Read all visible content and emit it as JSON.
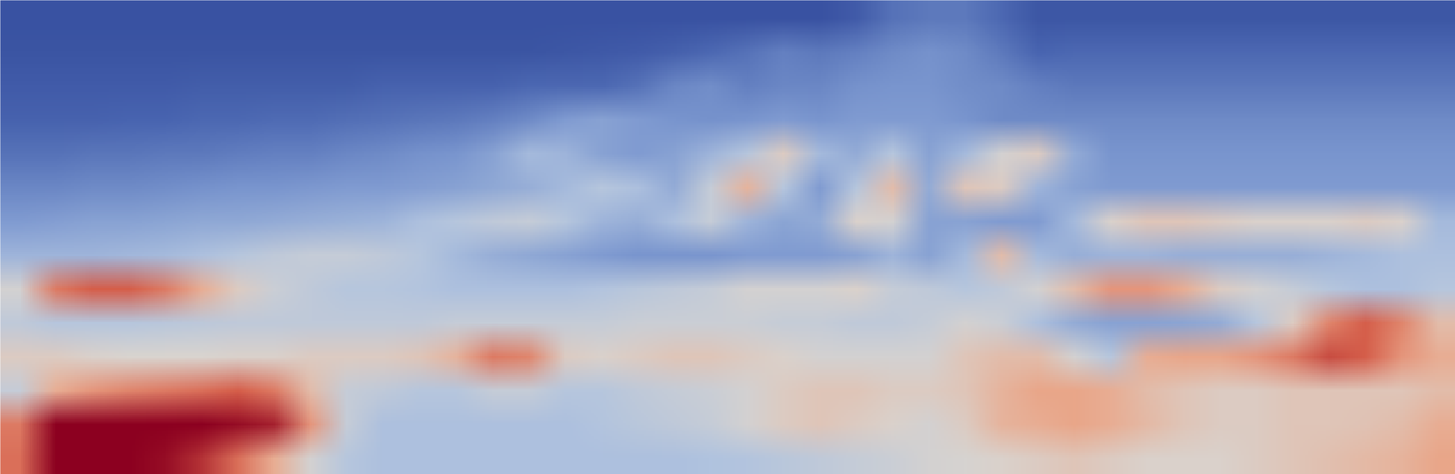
{
  "chart_data": {
    "type": "heatmap",
    "tick_labels": false,
    "zlim": [
      0,
      1
    ],
    "colors": [
      "#2e4597",
      "#4965b0",
      "#7b97cf",
      "#b0c3df",
      "#d9d4cf",
      "#eaa98c",
      "#d45a47",
      "#8c0020"
    ],
    "cells": [
      [
        0.06,
        0.06,
        0.06,
        0.06,
        0.06,
        0.06,
        0.06,
        0.06,
        0.06,
        0.06,
        0.06,
        0.06,
        0.06,
        0.06,
        0.06,
        0.06,
        0.06,
        0.06,
        0.06,
        0.06,
        0.06,
        0.06,
        0.06,
        0.1,
        0.18,
        0.2,
        0.2,
        0.15,
        0.08,
        0.08,
        0.08,
        0.08,
        0.08,
        0.08,
        0.08,
        0.08,
        0.08,
        0.08,
        0.08,
        0.08
      ],
      [
        0.07,
        0.07,
        0.07,
        0.07,
        0.07,
        0.07,
        0.07,
        0.07,
        0.07,
        0.07,
        0.07,
        0.07,
        0.07,
        0.07,
        0.07,
        0.08,
        0.09,
        0.1,
        0.12,
        0.15,
        0.18,
        0.22,
        0.2,
        0.22,
        0.25,
        0.27,
        0.25,
        0.2,
        0.14,
        0.15,
        0.15,
        0.15,
        0.15,
        0.15,
        0.15,
        0.15,
        0.15,
        0.15,
        0.15,
        0.15
      ],
      [
        0.1,
        0.1,
        0.1,
        0.1,
        0.1,
        0.11,
        0.11,
        0.11,
        0.11,
        0.11,
        0.13,
        0.13,
        0.13,
        0.13,
        0.15,
        0.15,
        0.15,
        0.18,
        0.24,
        0.26,
        0.22,
        0.24,
        0.24,
        0.27,
        0.28,
        0.28,
        0.26,
        0.25,
        0.22,
        0.2,
        0.2,
        0.2,
        0.2,
        0.2,
        0.2,
        0.2,
        0.2,
        0.2,
        0.2,
        0.2
      ],
      [
        0.13,
        0.13,
        0.13,
        0.14,
        0.14,
        0.15,
        0.15,
        0.16,
        0.16,
        0.17,
        0.18,
        0.19,
        0.2,
        0.22,
        0.25,
        0.3,
        0.32,
        0.3,
        0.28,
        0.27,
        0.28,
        0.3,
        0.28,
        0.3,
        0.3,
        0.3,
        0.28,
        0.25,
        0.25,
        0.25,
        0.25,
        0.25,
        0.25,
        0.25,
        0.25,
        0.25,
        0.25,
        0.25,
        0.25,
        0.25
      ],
      [
        0.18,
        0.18,
        0.19,
        0.19,
        0.2,
        0.2,
        0.21,
        0.22,
        0.22,
        0.24,
        0.25,
        0.27,
        0.28,
        0.32,
        0.4,
        0.38,
        0.32,
        0.3,
        0.32,
        0.38,
        0.45,
        0.6,
        0.4,
        0.35,
        0.45,
        0.32,
        0.4,
        0.55,
        0.6,
        0.35,
        0.28,
        0.28,
        0.28,
        0.28,
        0.28,
        0.28,
        0.28,
        0.28,
        0.28,
        0.28
      ],
      [
        0.24,
        0.24,
        0.25,
        0.25,
        0.26,
        0.27,
        0.28,
        0.28,
        0.29,
        0.3,
        0.3,
        0.31,
        0.32,
        0.34,
        0.36,
        0.4,
        0.45,
        0.42,
        0.35,
        0.5,
        0.68,
        0.45,
        0.3,
        0.45,
        0.65,
        0.35,
        0.62,
        0.6,
        0.38,
        0.32,
        0.3,
        0.3,
        0.3,
        0.3,
        0.3,
        0.3,
        0.3,
        0.3,
        0.3,
        0.3
      ],
      [
        0.3,
        0.31,
        0.32,
        0.32,
        0.33,
        0.34,
        0.34,
        0.35,
        0.36,
        0.37,
        0.38,
        0.42,
        0.45,
        0.48,
        0.5,
        0.45,
        0.38,
        0.36,
        0.42,
        0.5,
        0.38,
        0.33,
        0.35,
        0.58,
        0.55,
        0.32,
        0.32,
        0.3,
        0.3,
        0.4,
        0.58,
        0.62,
        0.62,
        0.6,
        0.58,
        0.58,
        0.58,
        0.6,
        0.58,
        0.4
      ],
      [
        0.38,
        0.38,
        0.38,
        0.39,
        0.4,
        0.42,
        0.45,
        0.48,
        0.5,
        0.5,
        0.48,
        0.45,
        0.4,
        0.36,
        0.34,
        0.32,
        0.3,
        0.28,
        0.28,
        0.28,
        0.3,
        0.3,
        0.3,
        0.32,
        0.38,
        0.32,
        0.4,
        0.65,
        0.4,
        0.36,
        0.38,
        0.38,
        0.36,
        0.36,
        0.36,
        0.36,
        0.38,
        0.4,
        0.42,
        0.42
      ],
      [
        0.55,
        0.8,
        0.85,
        0.85,
        0.8,
        0.7,
        0.6,
        0.52,
        0.48,
        0.45,
        0.45,
        0.44,
        0.42,
        0.42,
        0.42,
        0.42,
        0.44,
        0.46,
        0.48,
        0.5,
        0.55,
        0.55,
        0.55,
        0.58,
        0.5,
        0.48,
        0.45,
        0.48,
        0.55,
        0.65,
        0.75,
        0.75,
        0.7,
        0.6,
        0.55,
        0.5,
        0.45,
        0.42,
        0.42,
        0.45
      ],
      [
        0.48,
        0.45,
        0.45,
        0.45,
        0.46,
        0.47,
        0.48,
        0.48,
        0.48,
        0.48,
        0.48,
        0.48,
        0.5,
        0.5,
        0.5,
        0.5,
        0.5,
        0.52,
        0.52,
        0.52,
        0.52,
        0.5,
        0.5,
        0.48,
        0.48,
        0.5,
        0.55,
        0.52,
        0.42,
        0.35,
        0.32,
        0.32,
        0.33,
        0.35,
        0.45,
        0.6,
        0.78,
        0.85,
        0.78,
        0.65
      ],
      [
        0.6,
        0.6,
        0.58,
        0.57,
        0.57,
        0.57,
        0.58,
        0.58,
        0.6,
        0.6,
        0.6,
        0.62,
        0.68,
        0.8,
        0.78,
        0.6,
        0.58,
        0.6,
        0.62,
        0.62,
        0.6,
        0.58,
        0.55,
        0.55,
        0.55,
        0.55,
        0.62,
        0.65,
        0.65,
        0.55,
        0.45,
        0.7,
        0.72,
        0.72,
        0.75,
        0.8,
        0.88,
        0.85,
        0.75,
        0.7
      ],
      [
        0.5,
        0.7,
        0.75,
        0.78,
        0.8,
        0.82,
        0.85,
        0.8,
        0.65,
        0.5,
        0.48,
        0.45,
        0.45,
        0.5,
        0.5,
        0.45,
        0.45,
        0.48,
        0.5,
        0.52,
        0.55,
        0.6,
        0.62,
        0.62,
        0.6,
        0.6,
        0.62,
        0.68,
        0.72,
        0.72,
        0.7,
        0.65,
        0.62,
        0.6,
        0.6,
        0.62,
        0.62,
        0.62,
        0.62,
        0.65
      ],
      [
        0.8,
        1.0,
        1.0,
        1.0,
        1.0,
        1.0,
        0.98,
        0.95,
        0.75,
        0.5,
        0.42,
        0.42,
        0.42,
        0.42,
        0.42,
        0.42,
        0.44,
        0.46,
        0.48,
        0.5,
        0.55,
        0.6,
        0.62,
        0.6,
        0.58,
        0.55,
        0.6,
        0.68,
        0.7,
        0.72,
        0.7,
        0.66,
        0.62,
        0.6,
        0.6,
        0.62,
        0.62,
        0.63,
        0.65,
        0.7
      ],
      [
        0.82,
        1.0,
        1.0,
        1.0,
        0.98,
        0.92,
        0.82,
        0.7,
        0.55,
        0.45,
        0.42,
        0.42,
        0.42,
        0.42,
        0.42,
        0.42,
        0.42,
        0.42,
        0.42,
        0.43,
        0.44,
        0.46,
        0.48,
        0.5,
        0.52,
        0.55,
        0.56,
        0.58,
        0.6,
        0.62,
        0.6,
        0.58,
        0.58,
        0.58,
        0.6,
        0.62,
        0.64,
        0.66,
        0.68,
        0.72
      ]
    ]
  }
}
